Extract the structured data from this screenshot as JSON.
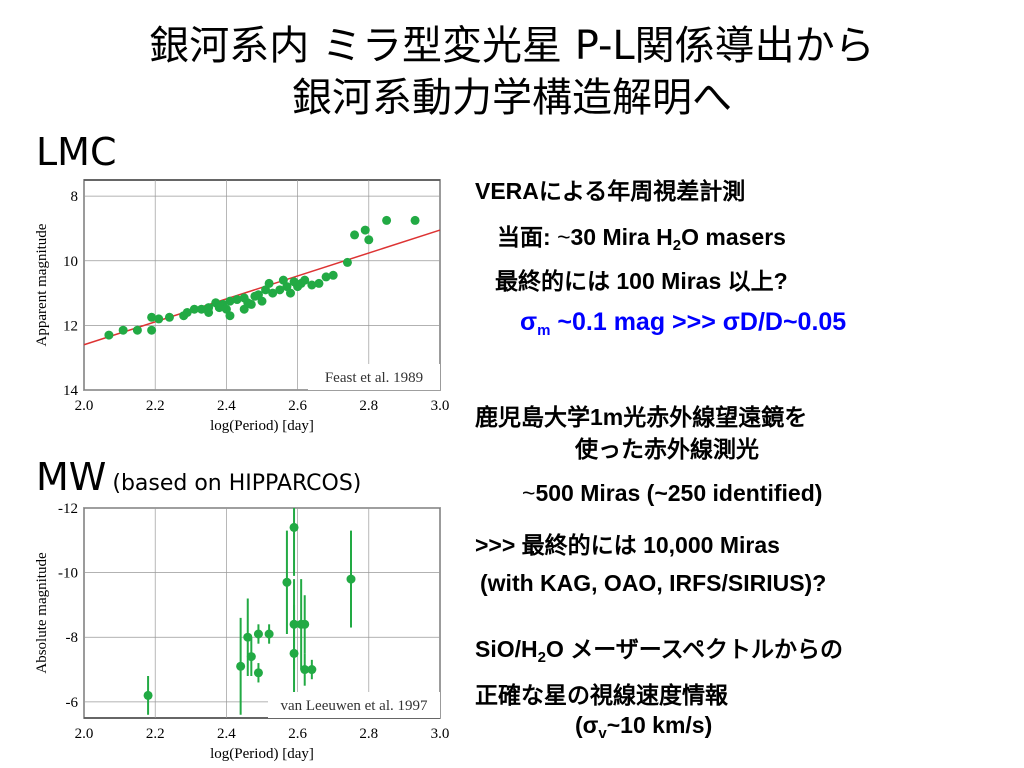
{
  "slide": {
    "title_line1": "銀河系内 ミラ型変光星 P-L関係導出から",
    "title_line2": "銀河系動力学構造解明へ",
    "lmc_label": "LMC",
    "mw_label": "MW",
    "mw_note": "(based on HIPPARCOS)"
  },
  "text_blocks": {
    "vera": "VERAによる年周視差計測",
    "current_prefix": "当面: ",
    "current_rest": "30 Mira H",
    "current_sub": "2",
    "current_tail": "O masers",
    "final": "最終的には 100 Miras 以上?",
    "sigma": "σ",
    "sigma_sub": "m",
    "sigma_rest": " ~0.1 mag >>> σD/D~0.05",
    "kago1": "鹿児島大学1m光赤外線望遠鏡を",
    "kago2": "使った赤外線測光",
    "count": "500 Miras (~250 identified)",
    "final2": ">>> 最終的には 10,000 Miras",
    "with": "(with KAG, OAO, IRFS/SIRIUS)?",
    "sio_prefix": "SiO/H",
    "sio_sub": "2",
    "sio_rest": "O メーザースペクトルからの",
    "precise": "正確な星の視線速度情報",
    "sigmav_open": "(σ",
    "sigmav_sub": "v",
    "sigmav_rest": "~10 km/s)",
    "tilde": "~"
  },
  "chart_data": [
    {
      "type": "scatter",
      "name": "lmc-pl",
      "xlabel": "log(Period)  [day]",
      "ylabel": "Apparent magnitude",
      "annotation": "Feast et al. 1989",
      "xlim": [
        2.0,
        3.0
      ],
      "ylim": [
        14,
        7.5
      ],
      "xticks": [
        2.0,
        2.2,
        2.4,
        2.6,
        2.8,
        3.0
      ],
      "xtick_labels": [
        "2.0",
        "2.2",
        "2.4",
        "2.6",
        "2.8",
        "3.0"
      ],
      "yticks": [
        8,
        10,
        12,
        14
      ],
      "ytick_labels": [
        "8",
        "10",
        "12",
        "14"
      ],
      "grid": true,
      "point_color": "#22aa44",
      "fit_color": "#dd3333",
      "fit_line": [
        [
          2.0,
          12.6
        ],
        [
          3.0,
          9.05
        ]
      ],
      "points": [
        [
          2.07,
          12.3
        ],
        [
          2.11,
          12.15
        ],
        [
          2.15,
          12.15
        ],
        [
          2.19,
          12.15
        ],
        [
          2.19,
          11.75
        ],
        [
          2.21,
          11.8
        ],
        [
          2.24,
          11.75
        ],
        [
          2.28,
          11.7
        ],
        [
          2.29,
          11.6
        ],
        [
          2.31,
          11.5
        ],
        [
          2.33,
          11.5
        ],
        [
          2.35,
          11.45
        ],
        [
          2.35,
          11.6
        ],
        [
          2.37,
          11.3
        ],
        [
          2.39,
          11.35
        ],
        [
          2.4,
          11.5
        ],
        [
          2.41,
          11.25
        ],
        [
          2.43,
          11.2
        ],
        [
          2.45,
          11.15
        ],
        [
          2.46,
          11.3
        ],
        [
          2.48,
          11.1
        ],
        [
          2.49,
          11.05
        ],
        [
          2.5,
          11.25
        ],
        [
          2.51,
          10.9
        ],
        [
          2.53,
          11.0
        ],
        [
          2.55,
          10.9
        ],
        [
          2.57,
          10.8
        ],
        [
          2.58,
          11.0
        ],
        [
          2.6,
          10.8
        ],
        [
          2.61,
          10.7
        ],
        [
          2.62,
          10.6
        ],
        [
          2.64,
          10.75
        ],
        [
          2.66,
          10.7
        ],
        [
          2.68,
          10.5
        ],
        [
          2.7,
          10.45
        ],
        [
          2.74,
          10.05
        ],
        [
          2.76,
          9.2
        ],
        [
          2.79,
          9.05
        ],
        [
          2.8,
          9.35
        ],
        [
          2.85,
          8.75
        ],
        [
          2.93,
          8.75
        ],
        [
          2.41,
          11.7
        ],
        [
          2.45,
          11.5
        ],
        [
          2.52,
          10.7
        ],
        [
          2.56,
          10.6
        ],
        [
          2.59,
          10.65
        ],
        [
          2.47,
          11.35
        ],
        [
          2.38,
          11.45
        ]
      ]
    },
    {
      "type": "scatter",
      "name": "mw-pl",
      "xlabel": "log(Period)  [day]",
      "ylabel": "Absolute magnitude",
      "annotation": "van Leeuwen et al. 1997",
      "xlim": [
        2.0,
        3.0
      ],
      "ylim": [
        -5.5,
        -12
      ],
      "xticks": [
        2.0,
        2.2,
        2.4,
        2.6,
        2.8,
        3.0
      ],
      "xtick_labels": [
        "2.0",
        "2.2",
        "2.4",
        "2.6",
        "2.8",
        "3.0"
      ],
      "yticks": [
        -12,
        -10,
        -8,
        -6
      ],
      "ytick_labels": [
        "-12",
        "-10",
        "-8",
        "-6"
      ],
      "grid": true,
      "point_color": "#22aa44",
      "points": [
        [
          2.18,
          -6.2,
          0.6
        ],
        [
          2.44,
          -7.1,
          1.5
        ],
        [
          2.46,
          -8.0,
          1.2
        ],
        [
          2.47,
          -7.4,
          0.6
        ],
        [
          2.49,
          -8.1,
          0.3
        ],
        [
          2.49,
          -6.9,
          0.3
        ],
        [
          2.52,
          -8.1,
          0.3
        ],
        [
          2.57,
          -9.7,
          1.6
        ],
        [
          2.59,
          -11.4,
          1.5
        ],
        [
          2.59,
          -8.4,
          1.4
        ],
        [
          2.59,
          -7.5,
          1.5
        ],
        [
          2.61,
          -8.4,
          1.4
        ],
        [
          2.62,
          -8.4,
          0.9
        ],
        [
          2.62,
          -7.0,
          0.5
        ],
        [
          2.64,
          -7.0,
          0.3
        ],
        [
          2.75,
          -9.8,
          1.5
        ]
      ]
    }
  ]
}
